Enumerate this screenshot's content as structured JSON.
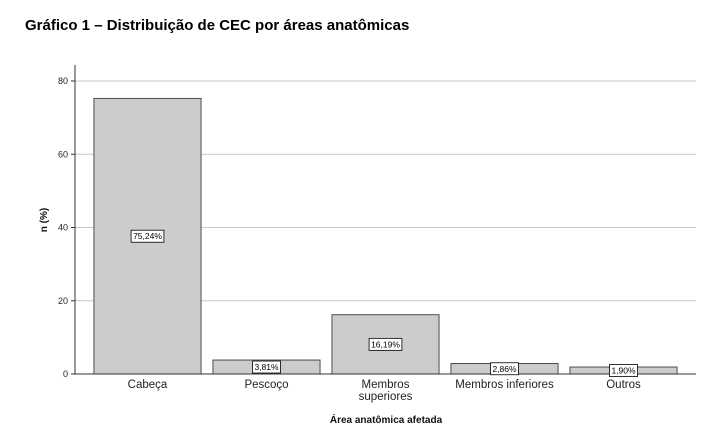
{
  "title": "Gráfico 1 – Distribuição de CEC por áreas anatômicas",
  "chart_data": {
    "type": "bar",
    "title": "Gráfico 1 – Distribuição de CEC por áreas anatômicas",
    "xlabel": "Área anatômica afetada",
    "ylabel": "n (%)",
    "ylim": [
      0,
      80
    ],
    "yticks": [
      0,
      20,
      40,
      60,
      80
    ],
    "grid": true,
    "categories": [
      [
        "Cabeça"
      ],
      [
        "Pescoço"
      ],
      [
        "Membros",
        "superiores"
      ],
      [
        "Membros inferiores"
      ],
      [
        "Outros"
      ]
    ],
    "values": [
      75.24,
      3.81,
      16.19,
      2.86,
      1.9
    ],
    "data_labels": [
      "75,24%",
      "3,81%",
      "16,19%",
      "2,86%",
      "1,90%"
    ],
    "colors": {
      "bar_fill": "#cccccc",
      "bar_stroke": "#4d4d4d",
      "grid": "#c8c8c8",
      "axis": "#333333"
    }
  }
}
